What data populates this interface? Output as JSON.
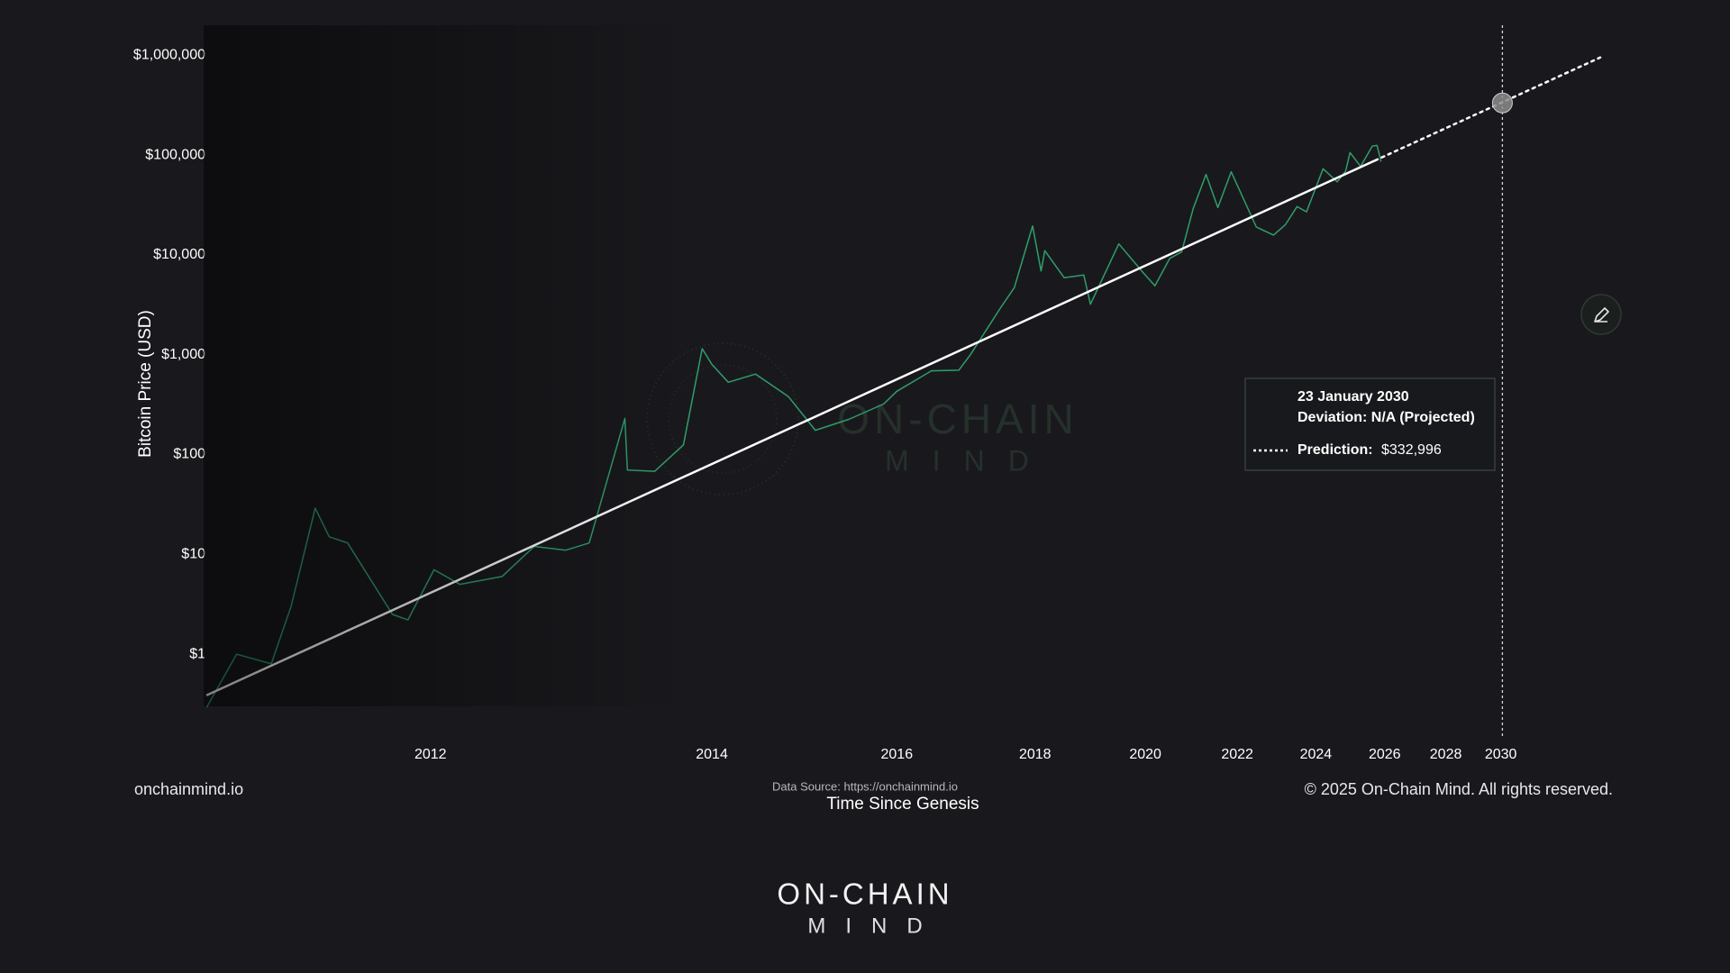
{
  "chart_data": {
    "type": "line",
    "xscale": "log",
    "yscale": "log",
    "grid": false,
    "ylabel": "Bitcoin Price (USD)",
    "xlabel": "Time Since Genesis",
    "xlim": [
      728,
      9189
    ],
    "ylim": [
      0.3,
      2000000
    ],
    "xticks": [
      {
        "value": 1093,
        "label": "2012"
      },
      {
        "value": 1824,
        "label": "2014"
      },
      {
        "value": 2554,
        "label": "2016"
      },
      {
        "value": 3285,
        "label": "2018"
      },
      {
        "value": 4015,
        "label": "2020"
      },
      {
        "value": 4746,
        "label": "2022"
      },
      {
        "value": 5476,
        "label": "2024"
      },
      {
        "value": 6207,
        "label": "2026"
      },
      {
        "value": 6937,
        "label": "2028"
      },
      {
        "value": 7668,
        "label": "2030"
      }
    ],
    "yticks": [
      {
        "value": 1000000,
        "label": "$1,000,000"
      },
      {
        "value": 100000,
        "label": "$100,000"
      },
      {
        "value": 10000,
        "label": "$10,000"
      },
      {
        "value": 1000,
        "label": "$1,000"
      },
      {
        "value": 100,
        "label": "$100"
      },
      {
        "value": 10,
        "label": "$10"
      },
      {
        "value": 1,
        "label": "$1"
      }
    ],
    "series": [
      {
        "color": "#2f9e6a",
        "line_style": "solid",
        "width": 1.5,
        "x": [
          728,
          768,
          818,
          848,
          886,
          909,
          940,
          1020,
          1049,
          1100,
          1153,
          1245,
          1320,
          1398,
          1459,
          1557,
          1564,
          1644,
          1732,
          1792,
          1824,
          1879,
          1975,
          2097,
          2202,
          2340,
          2493,
          2554,
          2720,
          2859,
          2920,
          3082,
          3163,
          3270,
          3321,
          3344,
          3464,
          3589,
          3633,
          3826,
          4000,
          4086,
          4197,
          4289,
          4380,
          4484,
          4581,
          4694,
          4914,
          5070,
          5179,
          5292,
          5384,
          5549,
          5693,
          5781,
          5827,
          5940,
          6068,
          6121,
          6165
        ],
        "values": [
          0.3,
          1.0,
          0.8,
          3,
          29,
          15,
          13,
          2.5,
          2.2,
          7,
          5,
          6,
          12,
          11,
          13,
          230,
          70,
          68,
          125,
          1150,
          800,
          530,
          640,
          380,
          175,
          225,
          320,
          430,
          690,
          700,
          1000,
          2900,
          4700,
          19500,
          6900,
          11000,
          5900,
          6300,
          3200,
          12900,
          6600,
          4900,
          9200,
          10700,
          29000,
          64000,
          29800,
          68000,
          19000,
          15800,
          20000,
          30500,
          27000,
          73000,
          54000,
          69000,
          106000,
          77000,
          123000,
          125000,
          87000
        ]
      },
      {
        "color": "#ffffff",
        "line_style": "solid",
        "width": 2.5,
        "x": [
          728,
          6100
        ],
        "values": [
          0.39,
          88300
        ]
      },
      {
        "color": "#ffffff",
        "line_style": "dotted",
        "width": 2.5,
        "x": [
          6100,
          9189
        ],
        "values": [
          88300,
          951000
        ]
      }
    ],
    "tooltip": {
      "x": 7690,
      "title": "23 January 2030",
      "line": "Deviation: N/A (Projected)",
      "label": "Prediction:",
      "value": 332996,
      "value_label": "$332,996"
    },
    "watermark": {
      "line1": "ON-CHAIN",
      "line2": "MIND"
    }
  },
  "footer": {
    "site": "onchainmind.io",
    "source": "Data Source: https://onchainmind.io",
    "copyright": "© 2025 On-Chain Mind. All rights reserved."
  },
  "logo": {
    "line1": "ON-CHAIN",
    "line2": "MIND"
  }
}
